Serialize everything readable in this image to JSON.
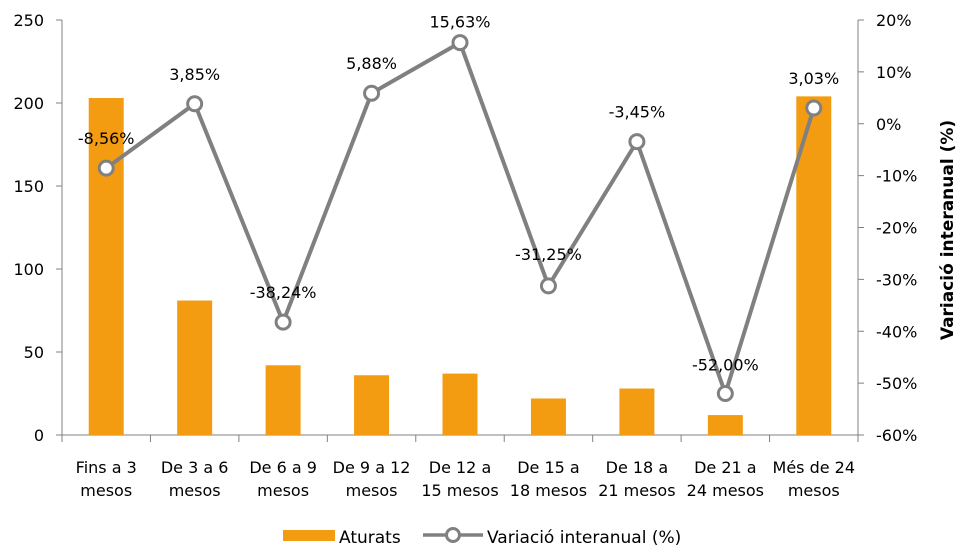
{
  "chart_data": {
    "type": "bar+line",
    "title": "",
    "categories": [
      "Fins a 3 mesos",
      "De 3 a 6 mesos",
      "De 6 a 9 mesos",
      "De 9 a 12 mesos",
      "De 12 a 15 mesos",
      "De 15 a 18 mesos",
      "De 18 a 21 mesos",
      "De 21 a 24 mesos",
      "Més de 24 mesos"
    ],
    "category_lines": [
      [
        "Fins a 3",
        "mesos"
      ],
      [
        "De 3 a 6",
        "mesos"
      ],
      [
        "De 6 a 9",
        "mesos"
      ],
      [
        "De 9 a 12",
        "mesos"
      ],
      [
        "De 12 a",
        "15 mesos"
      ],
      [
        "De 15 a",
        "18 mesos"
      ],
      [
        "De 18 a",
        "21 mesos"
      ],
      [
        "De 21 a",
        "24 mesos"
      ],
      [
        "Més de 24",
        "mesos"
      ]
    ],
    "bar_series": {
      "name": "Aturats",
      "values": [
        203,
        81,
        42,
        36,
        37,
        22,
        28,
        12,
        204
      ],
      "color": "#F39C12"
    },
    "line_series": {
      "name": "Variació interanual (%)",
      "values": [
        -8.56,
        3.85,
        -38.24,
        5.88,
        15.63,
        -31.25,
        -3.45,
        -52.0,
        3.03
      ],
      "labels": [
        "-8,56%",
        "3,85%",
        "-38,24%",
        "5,88%",
        "15,63%",
        "-31,25%",
        "-3,45%",
        "-52,00%",
        "3,03%"
      ],
      "color": "#808080"
    },
    "y_left": {
      "label": "",
      "ylim": [
        0,
        250
      ],
      "ticks": [
        0,
        50,
        100,
        150,
        200,
        250
      ],
      "tick_labels": [
        "0",
        "50",
        "100",
        "150",
        "200",
        "250"
      ]
    },
    "y_right": {
      "label": "Variació interanual (%)",
      "ylim": [
        -60,
        20
      ],
      "ticks": [
        -60,
        -50,
        -40,
        -30,
        -20,
        -10,
        0,
        10,
        20
      ],
      "tick_labels": [
        "-60%",
        "-50%",
        "-40%",
        "-30%",
        "-20%",
        "-10%",
        "0%",
        "10%",
        "20%"
      ]
    },
    "grid": false,
    "legend": {
      "position": "bottom",
      "entries": [
        "Aturats",
        "Variació interanual (%)"
      ]
    }
  }
}
